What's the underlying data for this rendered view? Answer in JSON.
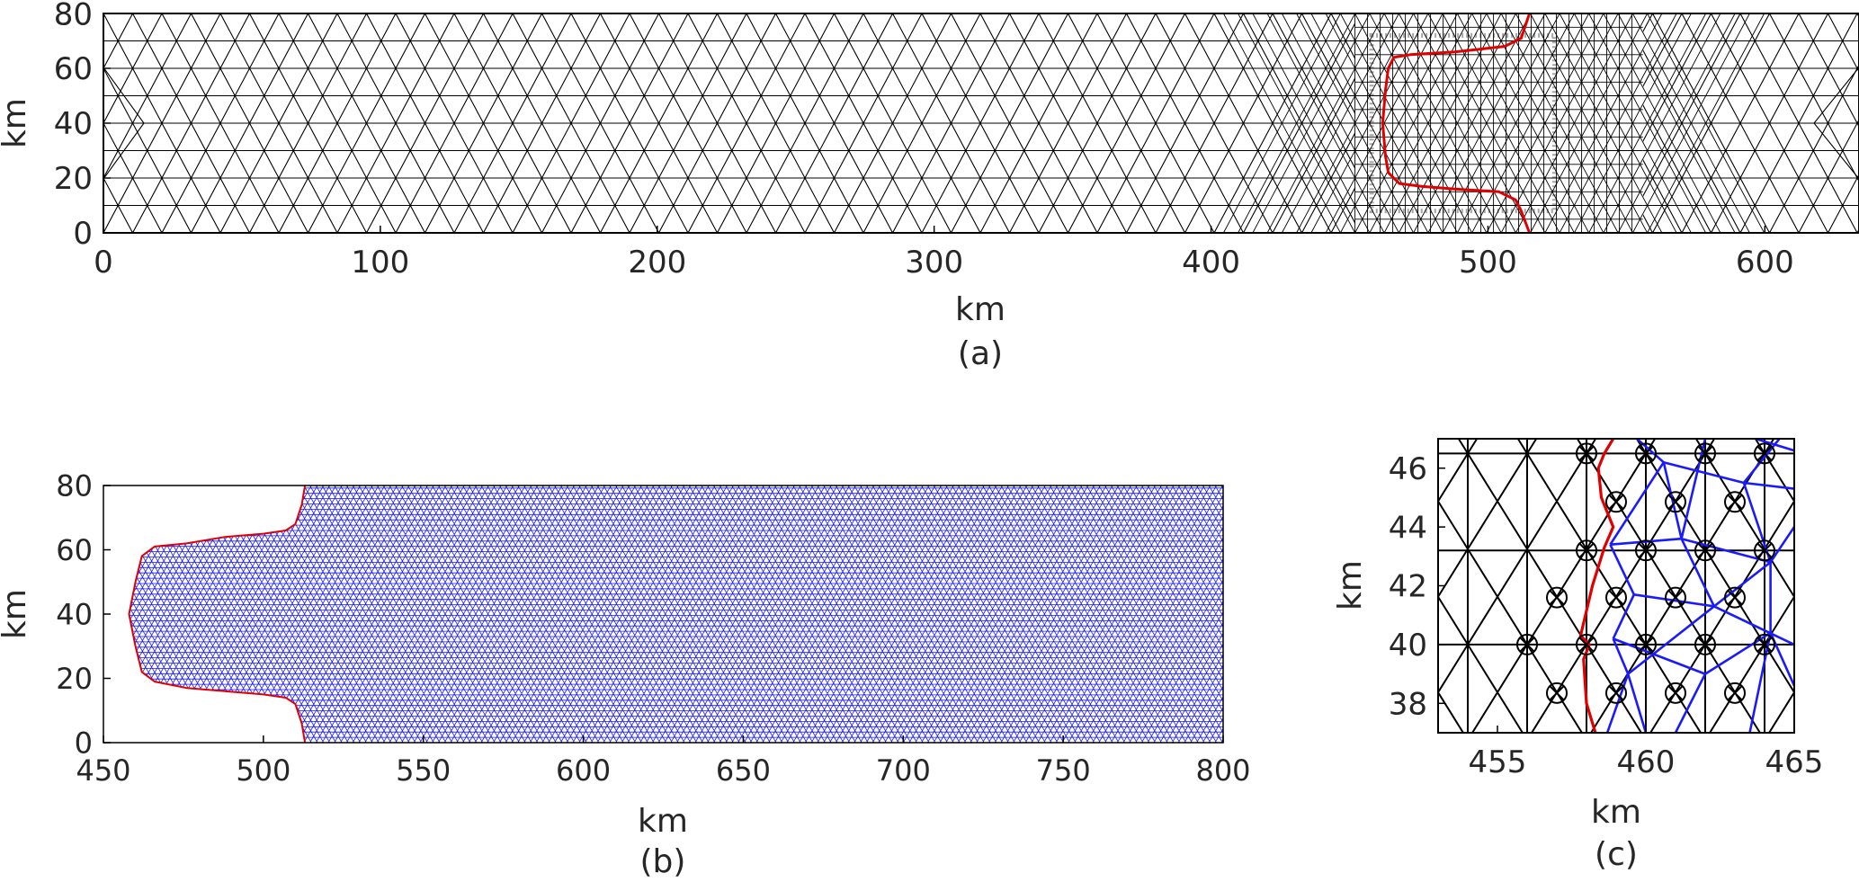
{
  "colors": {
    "background": "#ffffff",
    "mesh": "#000000",
    "boundary": "#e00000",
    "mesh_b": "#1a1aff",
    "axis_text": "#262626"
  },
  "chart_data": [
    {
      "id": "a",
      "type": "mesh",
      "caption": "(a)",
      "xlabel": "km",
      "ylabel": "km",
      "xlim": [
        0,
        634
      ],
      "ylim": [
        0,
        80
      ],
      "xticks": [
        0,
        100,
        200,
        300,
        400,
        500,
        600
      ],
      "yticks": [
        0,
        20,
        40,
        60,
        80
      ],
      "series": [
        {
          "kind": "triangular-mesh",
          "color": "#000000",
          "element_size_km": 10,
          "refined_zone_x": [
            452,
            556
          ],
          "refined_element_size_km": 2
        },
        {
          "kind": "boundary",
          "color": "#e00000",
          "x": [
            515,
            512,
            506,
            497,
            488,
            472,
            466,
            464,
            463,
            462,
            463,
            464,
            468,
            476,
            488,
            504,
            510,
            512,
            515
          ],
          "y": [
            80,
            71,
            68,
            67,
            66,
            65,
            64,
            60,
            52,
            40,
            28,
            22,
            18,
            17,
            16,
            15,
            12,
            8,
            0
          ]
        }
      ]
    },
    {
      "id": "b",
      "type": "mesh",
      "caption": "(b)",
      "xlabel": "km",
      "ylabel": "km",
      "xlim": [
        450,
        800
      ],
      "ylim": [
        0,
        80
      ],
      "xticks": [
        450,
        500,
        550,
        600,
        650,
        700,
        750,
        800
      ],
      "yticks": [
        0,
        20,
        40,
        60,
        80
      ],
      "series": [
        {
          "kind": "triangular-mesh",
          "color": "#1a1aff",
          "element_size_km": 2
        },
        {
          "kind": "boundary",
          "color": "#e00000",
          "x": [
            513,
            512,
            510,
            507,
            500,
            488,
            476,
            466,
            462,
            460,
            458,
            460,
            462,
            466,
            476,
            488,
            500,
            507,
            510,
            512,
            513
          ],
          "y": [
            80,
            74,
            68,
            66,
            65,
            64,
            62,
            61,
            58,
            50,
            40,
            30,
            22,
            19,
            17,
            16,
            15,
            14,
            12,
            6,
            0
          ]
        }
      ]
    },
    {
      "id": "c",
      "type": "mesh",
      "caption": "(c)",
      "xlabel": "km",
      "ylabel": "km",
      "xlim": [
        453,
        465
      ],
      "ylim": [
        37,
        47
      ],
      "xticks": [
        455,
        460,
        465
      ],
      "yticks": [
        38,
        40,
        42,
        44,
        46
      ],
      "series": [
        {
          "kind": "triangular-mesh",
          "color": "#000000"
        },
        {
          "kind": "triangular-mesh",
          "color": "#1a1aff"
        },
        {
          "kind": "boundary",
          "color": "#e00000",
          "x": [
            458.9,
            458.6,
            458.4,
            458.5,
            458.9,
            458.6,
            458.2,
            457.8,
            458.1,
            457.9,
            458.0,
            458.3
          ],
          "y": [
            47,
            46.5,
            46,
            45,
            44,
            43.3,
            42,
            40.3,
            40,
            39.5,
            38,
            37
          ]
        },
        {
          "kind": "nodes",
          "symbol": "circled-x",
          "color": "#000000",
          "points": [
            [
              458,
              46.5
            ],
            [
              460,
              46.5
            ],
            [
              462,
              46.5
            ],
            [
              464,
              46.5
            ],
            [
              459,
              44.85
            ],
            [
              461,
              44.85
            ],
            [
              463,
              44.85
            ],
            [
              458,
              43.2
            ],
            [
              460,
              43.2
            ],
            [
              462,
              43.2
            ],
            [
              464,
              43.2
            ],
            [
              457,
              41.6
            ],
            [
              459,
              41.6
            ],
            [
              461,
              41.6
            ],
            [
              463,
              41.6
            ],
            [
              456,
              40
            ],
            [
              458,
              40
            ],
            [
              460,
              40
            ],
            [
              462,
              40
            ],
            [
              464,
              40
            ],
            [
              457,
              38.35
            ],
            [
              459,
              38.35
            ],
            [
              461,
              38.35
            ],
            [
              463,
              38.35
            ]
          ]
        }
      ]
    }
  ]
}
